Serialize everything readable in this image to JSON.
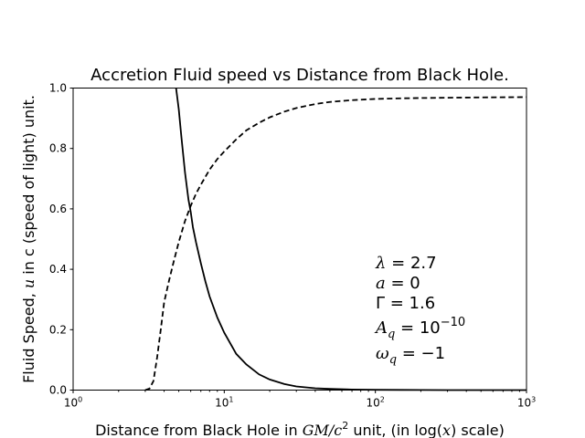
{
  "chart_data": {
    "type": "line",
    "title": "Accretion Fluid speed vs Distance from Black Hole.",
    "xlabel": {
      "prefix": "Distance from Black Hole in ",
      "unit_main": "GM/c",
      "unit_sup": "2",
      "middle": " unit, (in log(",
      "var": "x",
      "suffix": ") scale)"
    },
    "ylabel": {
      "prefix": "Fluid Speed, ",
      "var": "u",
      "suffix": " in c (speed of light) unit."
    },
    "x_scale": "log",
    "xlim": [
      1,
      1000
    ],
    "ylim": [
      0,
      1
    ],
    "x_ticks": [
      {
        "base": "10",
        "exp": "0"
      },
      {
        "base": "10",
        "exp": "1"
      },
      {
        "base": "10",
        "exp": "2"
      },
      {
        "base": "10",
        "exp": "3"
      }
    ],
    "y_ticks": [
      "0.0",
      "0.2",
      "0.4",
      "0.6",
      "0.8",
      "1.0"
    ],
    "grid": false,
    "series": [
      {
        "style": "solid",
        "x": [
          4.8,
          5.0,
          5.2,
          5.5,
          5.8,
          6.0,
          6.2,
          6.5,
          7.0,
          7.5,
          8.0,
          9.0,
          10,
          12,
          14,
          17,
          20,
          25,
          30,
          40,
          50,
          70,
          100,
          150,
          200,
          300,
          500,
          1000
        ],
        "y": [
          1.0,
          0.93,
          0.84,
          0.72,
          0.63,
          0.59,
          0.54,
          0.49,
          0.42,
          0.36,
          0.31,
          0.24,
          0.19,
          0.12,
          0.085,
          0.052,
          0.035,
          0.02,
          0.012,
          0.006,
          0.004,
          0.002,
          0.001,
          0.0005,
          0.0003,
          0.0001,
          3e-05,
          0.0
        ]
      },
      {
        "style": "dashed",
        "x": [
          3.0,
          3.2,
          3.4,
          3.6,
          3.8,
          4.0,
          4.3,
          4.6,
          5.0,
          5.5,
          6.0,
          6.5,
          7.0,
          8.0,
          9.0,
          10,
          12,
          14,
          17,
          20,
          25,
          30,
          40,
          50,
          70,
          100,
          150,
          200,
          300,
          500,
          1000
        ],
        "y": [
          0.0,
          0.005,
          0.03,
          0.11,
          0.2,
          0.29,
          0.36,
          0.42,
          0.49,
          0.56,
          0.61,
          0.65,
          0.68,
          0.73,
          0.765,
          0.79,
          0.83,
          0.86,
          0.885,
          0.903,
          0.922,
          0.934,
          0.947,
          0.954,
          0.96,
          0.964,
          0.966,
          0.967,
          0.968,
          0.969,
          0.97
        ]
      }
    ],
    "annotations": [
      {
        "sym": "λ",
        "sub": "",
        "eq": " = 2.7",
        "sup": ""
      },
      {
        "sym": "a",
        "sub": "",
        "eq": " = 0",
        "sup": ""
      },
      {
        "sym": "Γ",
        "sub": "",
        "eq": " = 1.6",
        "sup": ""
      },
      {
        "sym": "A",
        "sub": "q",
        "eq": " = 10",
        "sup": "−10"
      },
      {
        "sym": "ω",
        "sub": "q",
        "eq": " = −1",
        "sup": ""
      }
    ]
  }
}
